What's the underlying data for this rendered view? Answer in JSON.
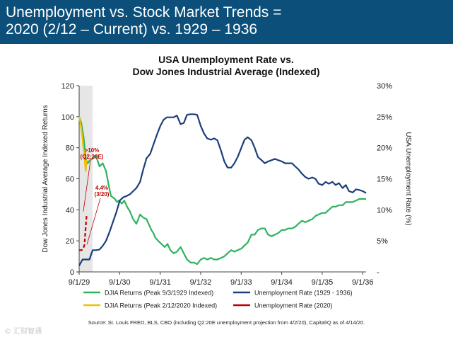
{
  "header": {
    "line1": "Unemployment vs. Stock Market Trends =",
    "line2": "2020 (2/12 – Current) vs. 1929 – 1936",
    "background": "#0b4f7a"
  },
  "footer": {
    "source": "Source: St. Louis FRED, BLS, CBO (including Q2:20E unemployment projection from 4/2/20), CapitalIQ as of 4/14/20."
  },
  "watermark": "© 汇财智通",
  "chart_data": {
    "type": "line",
    "title_line1": "USA Unemployment Rate vs.",
    "title_line2": "Dow Jones Industrial Average (Indexed)",
    "ylabel_left": "Dow Jones Industrial Average Indexed Returns",
    "ylabel_right": "USA Unemployment Rate (%)",
    "ylim_left": [
      0,
      120
    ],
    "yticks_left": [
      "0",
      "20",
      "40",
      "60",
      "80",
      "100",
      "120"
    ],
    "ylim_right": [
      0,
      30
    ],
    "yticks_right": [
      "-",
      "5%",
      "10%",
      "15%",
      "20%",
      "25%",
      "30%"
    ],
    "xlim_years": [
      1929.667,
      1936.75
    ],
    "xticks": [
      {
        "label": "9/1/29",
        "t": 1929.667
      },
      {
        "label": "9/1/30",
        "t": 1930.667
      },
      {
        "label": "9/1/31",
        "t": 1931.667
      },
      {
        "label": "9/1/32",
        "t": 1932.667
      },
      {
        "label": "9/1/33",
        "t": 1933.667
      },
      {
        "label": "9/1/34",
        "t": 1934.667
      },
      {
        "label": "9/1/35",
        "t": 1935.667
      },
      {
        "label": "9/1/36",
        "t": 1936.667
      }
    ],
    "shaded_period": [
      1929.667,
      1930.0
    ],
    "grid": false,
    "legend_position": "bottom",
    "annotations": [
      {
        "text_line1": ">10%",
        "text_line2": "(Q2:20E)",
        "t": 1929.77,
        "y_right": 9.5,
        "color": "#c00000"
      },
      {
        "text_line1": "4.4%",
        "text_line2": "(3/20)",
        "t": 1929.86,
        "y_right": 4.2,
        "color": "#c00000"
      }
    ],
    "series": [
      {
        "name": "DJIA Returns (Peak 9/3/1929 Indexed)",
        "axis": "left",
        "color": "#2db35e",
        "x": [
          1929.667,
          1929.72,
          1929.78,
          1929.83,
          1929.88,
          1929.93,
          1930.0,
          1930.08,
          1930.17,
          1930.25,
          1930.33,
          1930.38,
          1930.45,
          1930.5,
          1930.55,
          1930.6,
          1930.65,
          1930.72,
          1930.78,
          1930.85,
          1930.92,
          1931.0,
          1931.08,
          1931.17,
          1931.25,
          1931.33,
          1931.4,
          1931.45,
          1931.5,
          1931.55,
          1931.62,
          1931.7,
          1931.78,
          1931.85,
          1931.92,
          1932.0,
          1932.08,
          1932.17,
          1932.25,
          1932.33,
          1932.42,
          1932.5,
          1932.58,
          1932.67,
          1932.75,
          1932.83,
          1932.92,
          1933.0,
          1933.08,
          1933.17,
          1933.25,
          1933.33,
          1933.42,
          1933.5,
          1933.58,
          1933.67,
          1933.75,
          1933.83,
          1933.92,
          1934.0,
          1934.08,
          1934.17,
          1934.25,
          1934.33,
          1934.42,
          1934.5,
          1934.58,
          1934.67,
          1934.75,
          1934.83,
          1934.92,
          1935.0,
          1935.08,
          1935.17,
          1935.25,
          1935.33,
          1935.42,
          1935.5,
          1935.58,
          1935.67,
          1935.75,
          1935.83,
          1935.92,
          1936.0,
          1936.08,
          1936.17,
          1936.25,
          1936.33,
          1936.42,
          1936.5,
          1936.58,
          1936.67,
          1936.75
        ],
        "values": [
          100,
          96,
          86,
          73,
          70,
          72,
          73,
          75,
          68,
          70,
          65,
          58,
          49,
          48,
          47,
          45,
          46,
          44,
          46,
          42,
          39,
          34,
          31,
          37,
          35,
          34,
          30,
          27,
          25,
          22,
          20,
          18,
          16,
          18,
          14,
          12,
          13,
          16,
          12,
          8,
          6,
          6,
          5,
          8,
          9,
          8,
          9,
          8,
          8,
          9,
          10,
          12,
          14,
          13,
          14,
          15,
          17,
          19,
          24,
          24,
          27,
          28,
          28,
          24,
          23,
          24,
          25,
          27,
          27,
          28,
          28,
          29,
          31,
          33,
          32,
          33,
          34,
          36,
          37,
          38,
          38,
          40,
          42,
          42,
          43,
          43,
          45,
          45,
          45,
          46,
          47,
          47,
          47
        ]
      },
      {
        "name": "DJIA Returns (Peak 2/12/2020 Indexed)",
        "axis": "left",
        "color": "#f0c000",
        "x": [
          1929.667,
          1929.69,
          1929.71,
          1929.73,
          1929.75,
          1929.77,
          1929.79,
          1929.81,
          1929.83,
          1929.85,
          1929.87
        ],
        "values": [
          100,
          97,
          94,
          90,
          86,
          80,
          77,
          70,
          65,
          72,
          71
        ]
      },
      {
        "name": "Unemployment Rate (1929 - 1936)",
        "axis": "right",
        "color": "#1b3f7a",
        "x": [
          1929.667,
          1929.75,
          1929.83,
          1929.92,
          1930.0,
          1930.08,
          1930.17,
          1930.25,
          1930.33,
          1930.42,
          1930.5,
          1930.58,
          1930.67,
          1930.75,
          1930.83,
          1930.92,
          1931.0,
          1931.08,
          1931.17,
          1931.25,
          1931.33,
          1931.42,
          1931.5,
          1931.58,
          1931.67,
          1931.75,
          1931.83,
          1931.92,
          1932.0,
          1932.08,
          1932.17,
          1932.25,
          1932.33,
          1932.42,
          1932.5,
          1932.58,
          1932.67,
          1932.75,
          1932.83,
          1932.92,
          1933.0,
          1933.08,
          1933.17,
          1933.25,
          1933.33,
          1933.42,
          1933.5,
          1933.58,
          1933.67,
          1933.75,
          1933.83,
          1933.92,
          1934.0,
          1934.08,
          1934.17,
          1934.25,
          1934.33,
          1934.42,
          1934.5,
          1934.58,
          1934.67,
          1934.75,
          1934.83,
          1934.92,
          1935.0,
          1935.08,
          1935.17,
          1935.25,
          1935.33,
          1935.42,
          1935.5,
          1935.58,
          1935.67,
          1935.75,
          1935.83,
          1935.92,
          1936.0,
          1936.08,
          1936.17,
          1936.25,
          1936.33,
          1936.42,
          1936.5,
          1936.58,
          1936.67,
          1936.75
        ],
        "values": [
          1,
          2,
          2,
          2,
          3.5,
          3.5,
          3.6,
          4.2,
          5,
          6.5,
          8,
          9.5,
          11.5,
          12,
          12.2,
          12.5,
          13,
          13.5,
          14.5,
          16.5,
          18.3,
          19,
          20.5,
          22,
          23.5,
          24.5,
          24.9,
          24.9,
          24.9,
          25.2,
          23.8,
          24,
          25.3,
          25.4,
          25.4,
          25.3,
          23.5,
          22.3,
          21.5,
          21.3,
          21.5,
          21.2,
          19.5,
          17.8,
          16.8,
          16.8,
          17.5,
          18.5,
          20,
          21.3,
          21.7,
          21.2,
          20,
          18.5,
          18,
          17.5,
          17.8,
          18,
          18.2,
          18,
          17.8,
          17.5,
          17.5,
          17.5,
          17,
          16.5,
          15.8,
          15.3,
          15,
          15.2,
          15,
          14.2,
          14,
          14.5,
          14.2,
          14.5,
          14,
          14.3,
          13.5,
          14,
          13,
          12.8,
          13.3,
          13.2,
          13,
          12.7
        ]
      },
      {
        "name": "Unemployment Rate (2020)",
        "axis": "right",
        "color": "#c00000",
        "x": [
          1929.667,
          1929.7,
          1929.73,
          1929.75,
          1929.78,
          1929.8,
          1929.82,
          1929.85
        ],
        "values": [
          3.5,
          3.5,
          3.5,
          3.8,
          4.0,
          4.4,
          6.5,
          9.0
        ]
      }
    ]
  }
}
